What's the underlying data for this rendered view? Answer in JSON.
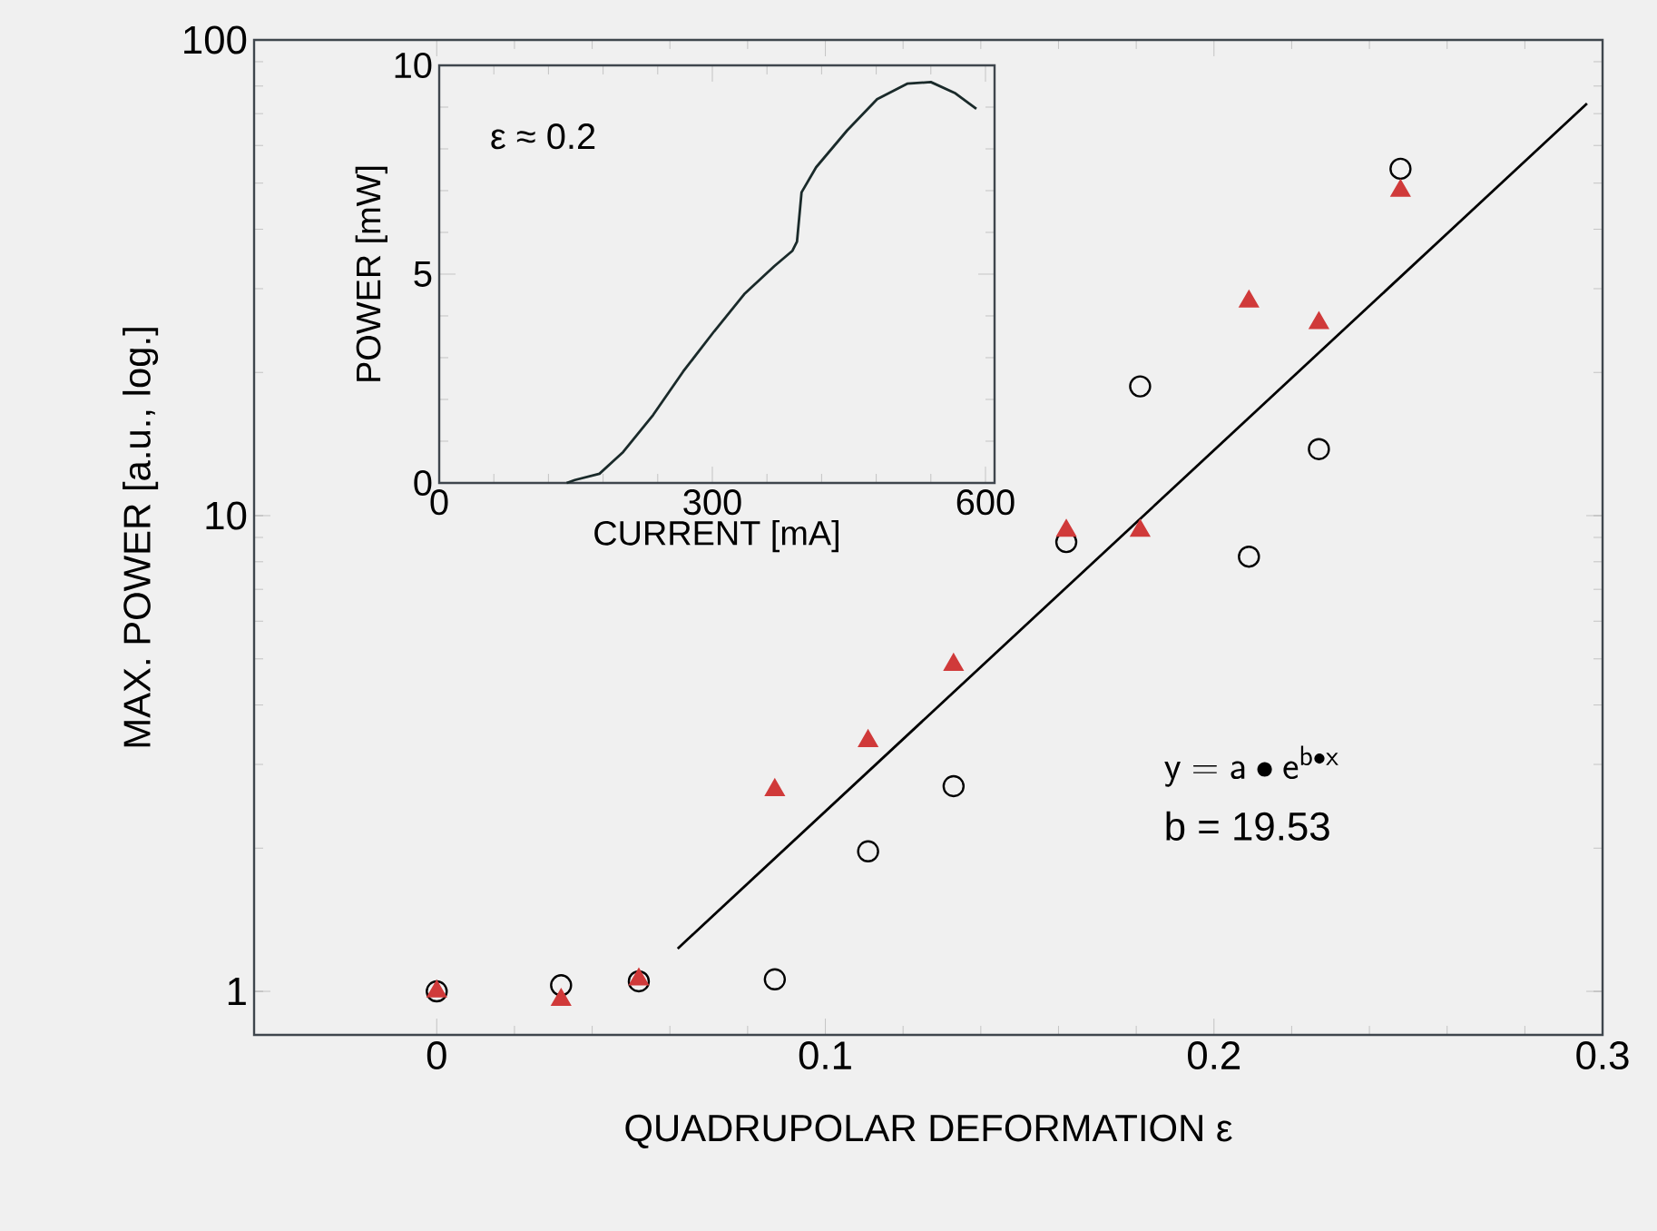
{
  "chart_data": [
    {
      "type": "scatter",
      "xlabel": "QUADRUPOLAR DEFORMATION ε",
      "ylabel": "MAX. POWER [a.u., log.]",
      "xlim": [
        -0.047,
        0.3
      ],
      "ylim": [
        0.81,
        100
      ],
      "xticks": [
        0,
        0.1,
        0.2,
        0.3
      ],
      "yticks": [
        1,
        10,
        100
      ],
      "log": "y",
      "annotations": [
        "\\mathsf{y = a \\bullet e^{b \\bullet x}}",
        "b = 19.53"
      ],
      "series": [
        {
          "color": "#000000",
          "marker": "circle",
          "x": [
            0,
            0.032,
            0.052,
            0.087,
            0.111,
            0.133,
            0.162,
            0.181,
            0.209,
            0.227,
            0.248
          ],
          "values": [
            1.0,
            1.03,
            1.05,
            1.06,
            1.97,
            2.7,
            8.8,
            18.7,
            8.2,
            13.8,
            53.6
          ]
        },
        {
          "color": "#d03a3a",
          "marker": "triangle",
          "x": [
            0,
            0.032,
            0.052,
            0.087,
            0.111,
            0.133,
            0.162,
            0.181,
            0.209,
            0.227,
            0.248
          ],
          "values": [
            1.0,
            0.96,
            1.06,
            2.65,
            3.36,
            4.86,
            9.3,
            9.3,
            28.2,
            25.4,
            48.2
          ]
        },
        {
          "type": "line",
          "color": "#000000",
          "marker": "none",
          "x": [
            0.062,
            0.296
          ],
          "values": [
            1.23,
            73.5
          ]
        }
      ]
    },
    {
      "type": "line",
      "xlabel": "CURRENT [mA]",
      "ylabel": "POWER [mW]",
      "xlim": [
        0,
        610
      ],
      "ylim": [
        0,
        10
      ],
      "xticks": [
        0,
        300,
        600
      ],
      "yticks": [
        0,
        5,
        10
      ],
      "annotations": [
        "ε ≈ 0.2"
      ],
      "series": [
        {
          "color": "#1a2a2a",
          "x": [
            140,
            149,
            176,
            202,
            235,
            268,
            302,
            335,
            368,
            388,
            393,
            398,
            414,
            448,
            481,
            514,
            540,
            567,
            590
          ],
          "values": [
            0,
            0.07,
            0.22,
            0.74,
            1.63,
            2.67,
            3.63,
            4.52,
            5.19,
            5.56,
            5.78,
            6.96,
            7.56,
            8.44,
            9.19,
            9.56,
            9.6,
            9.33,
            8.96
          ]
        }
      ]
    }
  ]
}
